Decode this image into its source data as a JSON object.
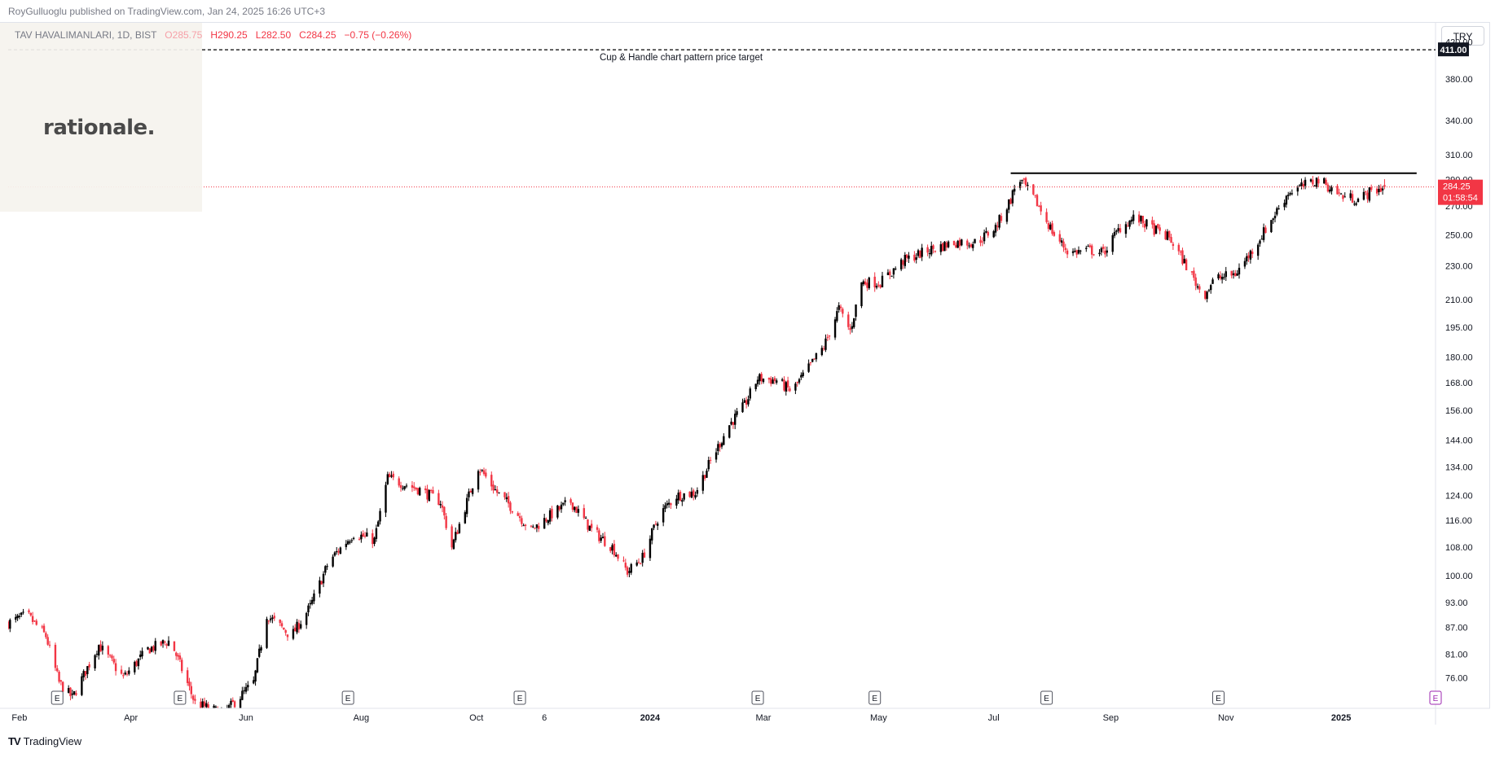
{
  "header": {
    "publisher_line": "RoyGulluoglu published on TradingView.com, Jan 24, 2025 16:26 UTC+3"
  },
  "legend": {
    "symbol": "TAV HAVALIMANLARI, 1D, BIST",
    "open_label": "O",
    "open": "285.75",
    "high_label": "H",
    "high": "290.25",
    "low_label": "L",
    "low": "282.50",
    "close_label": "C",
    "close": "284.25",
    "change": "−0.75 (−0.26%)"
  },
  "watermark": {
    "text": "rationale."
  },
  "currency": "TRY",
  "footer": {
    "brand": "TradingView",
    "icon": "tradingview-logo-icon"
  },
  "colors": {
    "up": "#000000",
    "down": "#f23645",
    "price_line": "#f23645",
    "target_line": "#000000",
    "axis_text": "#131722"
  },
  "chart_data": {
    "type": "candlestick",
    "symbol": "TAV HAVALIMANLARI",
    "interval": "1D",
    "exchange": "BIST",
    "y_scale": "log",
    "ylim": [
      70,
      440
    ],
    "y_ticks": [
      76,
      81,
      87,
      93,
      100,
      108,
      116,
      124,
      134,
      144,
      156,
      168,
      180,
      195,
      210,
      230,
      250,
      270,
      290,
      310,
      340,
      380,
      420
    ],
    "x_start": "2023-01-26",
    "x_end": "2025-02-20",
    "x_ticks": [
      {
        "date": "2023-02-01",
        "label": "Feb"
      },
      {
        "date": "2023-04-01",
        "label": "Apr"
      },
      {
        "date": "2023-06-01",
        "label": "Jun"
      },
      {
        "date": "2023-08-01",
        "label": "Aug"
      },
      {
        "date": "2023-10-01",
        "label": "Oct"
      },
      {
        "date": "2023-11-06",
        "label": "6"
      },
      {
        "date": "2024-01-01",
        "label": "2024"
      },
      {
        "date": "2024-03-01",
        "label": "Mar"
      },
      {
        "date": "2024-05-01",
        "label": "May"
      },
      {
        "date": "2024-07-01",
        "label": "Jul"
      },
      {
        "date": "2024-09-01",
        "label": "Sep"
      },
      {
        "date": "2024-11-01",
        "label": "Nov"
      },
      {
        "date": "2025-01-01",
        "label": "2025"
      }
    ],
    "path": [
      [
        "2023-01-26",
        88
      ],
      [
        "2023-02-05",
        90
      ],
      [
        "2023-02-15",
        85
      ],
      [
        "2023-02-22",
        75
      ],
      [
        "2023-03-01",
        72
      ],
      [
        "2023-03-15",
        83
      ],
      [
        "2023-03-28",
        76
      ],
      [
        "2023-04-10",
        82
      ],
      [
        "2023-04-22",
        84
      ],
      [
        "2023-05-05",
        71
      ],
      [
        "2023-05-20",
        69
      ],
      [
        "2023-06-05",
        75
      ],
      [
        "2023-06-12",
        90
      ],
      [
        "2023-06-25",
        85
      ],
      [
        "2023-07-05",
        92
      ],
      [
        "2023-07-15",
        104
      ],
      [
        "2023-07-28",
        112
      ],
      [
        "2023-08-08",
        110
      ],
      [
        "2023-08-15",
        130
      ],
      [
        "2023-09-01",
        126
      ],
      [
        "2023-09-12",
        122
      ],
      [
        "2023-09-18",
        108
      ],
      [
        "2023-09-26",
        122
      ],
      [
        "2023-10-02",
        134
      ],
      [
        "2023-10-12",
        125
      ],
      [
        "2023-10-20",
        120
      ],
      [
        "2023-10-30",
        113
      ],
      [
        "2023-11-10",
        118
      ],
      [
        "2023-11-20",
        122
      ],
      [
        "2023-12-01",
        113
      ],
      [
        "2023-12-12",
        108
      ],
      [
        "2023-12-20",
        101
      ],
      [
        "2023-12-28",
        105
      ],
      [
        "2024-01-06",
        118
      ],
      [
        "2024-01-15",
        124
      ],
      [
        "2024-01-25",
        125
      ],
      [
        "2024-02-02",
        136
      ],
      [
        "2024-02-12",
        150
      ],
      [
        "2024-02-20",
        158
      ],
      [
        "2024-02-27",
        170
      ],
      [
        "2024-03-08",
        169
      ],
      [
        "2024-03-16",
        164
      ],
      [
        "2024-03-26",
        176
      ],
      [
        "2024-04-02",
        185
      ],
      [
        "2024-04-10",
        205
      ],
      [
        "2024-04-16",
        193
      ],
      [
        "2024-04-22",
        220
      ],
      [
        "2024-05-02",
        220
      ],
      [
        "2024-05-14",
        233
      ],
      [
        "2024-05-28",
        240
      ],
      [
        "2024-06-10",
        245
      ],
      [
        "2024-06-22",
        245
      ],
      [
        "2024-07-02",
        255
      ],
      [
        "2024-07-10",
        275
      ],
      [
        "2024-07-14",
        292
      ],
      [
        "2024-07-24",
        272
      ],
      [
        "2024-08-02",
        250
      ],
      [
        "2024-08-10",
        238
      ],
      [
        "2024-08-20",
        240
      ],
      [
        "2024-08-28",
        238
      ],
      [
        "2024-09-06",
        255
      ],
      [
        "2024-09-14",
        262
      ],
      [
        "2024-09-22",
        255
      ],
      [
        "2024-10-02",
        248
      ],
      [
        "2024-10-10",
        232
      ],
      [
        "2024-10-20",
        212
      ],
      [
        "2024-10-26",
        222
      ],
      [
        "2024-11-06",
        225
      ],
      [
        "2024-11-14",
        238
      ],
      [
        "2024-11-24",
        258
      ],
      [
        "2024-12-04",
        280
      ],
      [
        "2024-12-12",
        285
      ],
      [
        "2024-12-20",
        290
      ],
      [
        "2025-01-02",
        277
      ],
      [
        "2025-01-10",
        275
      ],
      [
        "2025-01-16",
        280
      ],
      [
        "2025-01-24",
        284.25
      ]
    ],
    "last_price": "284.25",
    "countdown": "01:58:54",
    "horizontal_lines": [
      {
        "name": "price-target",
        "value": 411,
        "style": "dashed",
        "price_label": "411.00",
        "annotation": "Cup & Handle chart pattern price target"
      },
      {
        "name": "resistance",
        "value": 295,
        "style": "solid",
        "from": "2024-07-10",
        "to": "2025-02-10"
      }
    ],
    "earnings_markers": [
      "2023-02-21",
      "2023-04-27",
      "2023-07-25",
      "2023-10-24",
      "2024-02-27",
      "2024-04-29",
      "2024-07-29",
      "2024-10-28"
    ],
    "earnings_label": "E",
    "upcoming_marker": "2025-02-20"
  }
}
